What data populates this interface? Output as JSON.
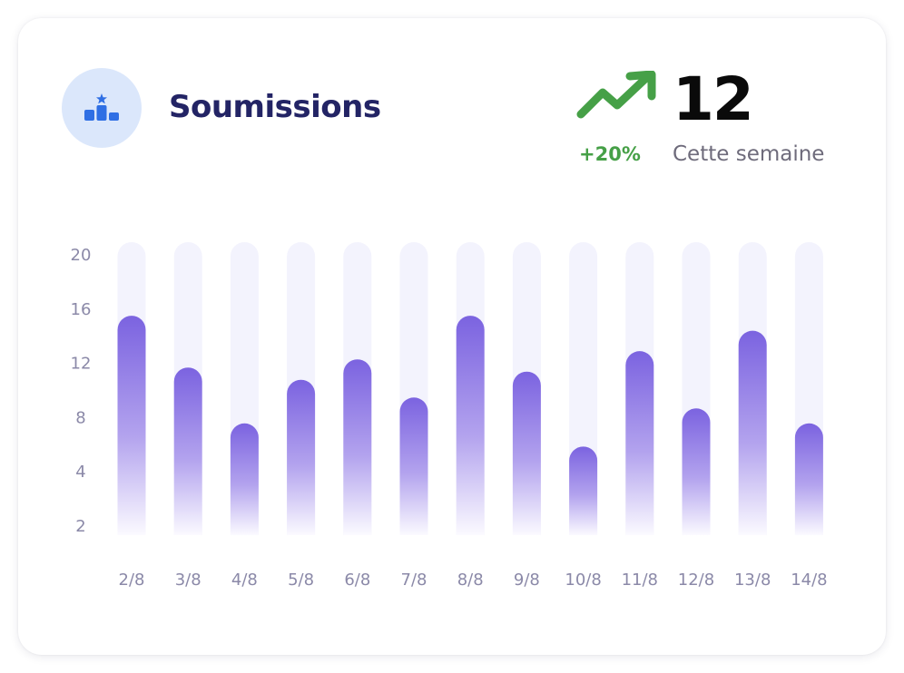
{
  "header": {
    "title": "Soumissions",
    "change": "+20%",
    "total": "12",
    "period_label": "Cette semaine"
  },
  "icons": {
    "badge": "podium-star-icon",
    "trend": "trending-up-arrow-icon"
  },
  "colors": {
    "title": "#232465",
    "positive": "#46a047",
    "bar_top": "#7b63e0",
    "bar_bottom": "#ffffff",
    "track": "#f3f3fd",
    "badge_bg": "#dbe7fb",
    "badge_icon": "#2f6fe4"
  },
  "chart_data": {
    "type": "bar",
    "categories": [
      "2/8",
      "3/8",
      "4/8",
      "5/8",
      "6/8",
      "7/8",
      "8/8",
      "9/8",
      "10/8",
      "11/8",
      "12/8",
      "13/8",
      "14/8"
    ],
    "values": [
      16.1,
      12.3,
      8.2,
      11.4,
      12.9,
      10.1,
      16.1,
      12.0,
      6.5,
      13.5,
      9.3,
      15.0,
      8.2
    ],
    "y_ticks": [
      "20",
      "16",
      "12",
      "8",
      "4",
      "2"
    ],
    "ylim": [
      0,
      21.5
    ],
    "title": "",
    "xlabel": "",
    "ylabel": "",
    "grid": false
  }
}
